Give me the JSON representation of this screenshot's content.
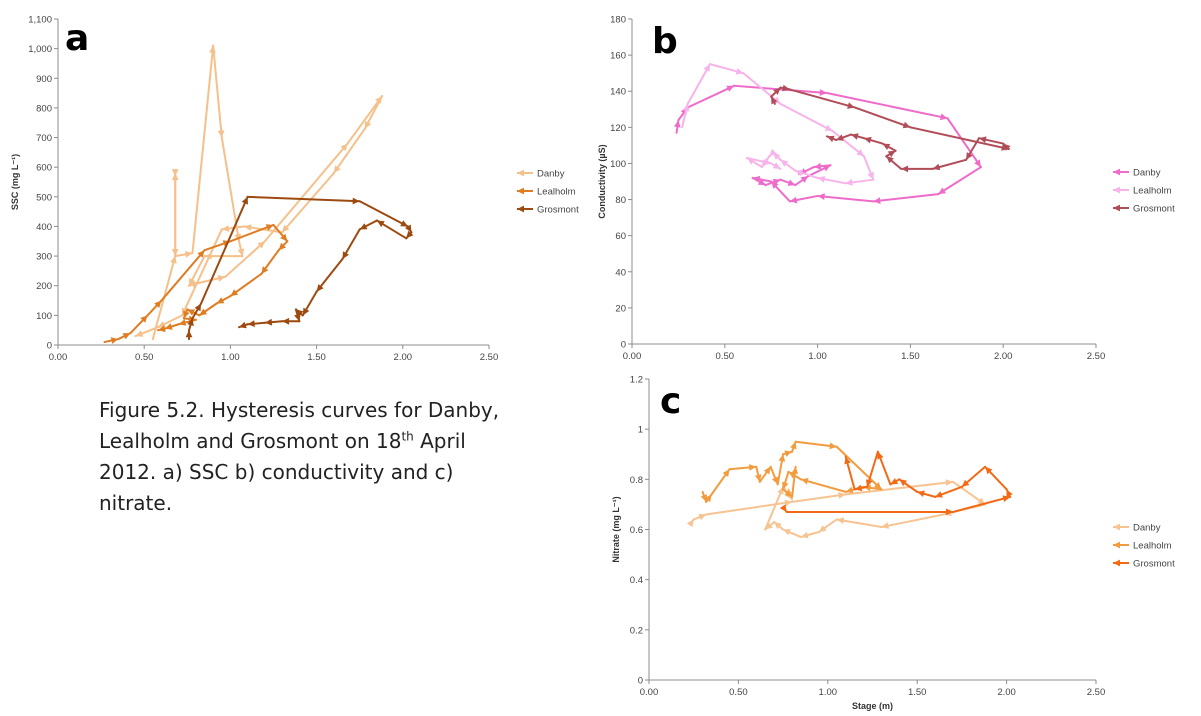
{
  "caption": {
    "pre": "Figure 5.2. Hysteresis curves for Danby, Lealholm and Grosmont on 18",
    "sup": "th",
    "post": " April 2012. a) SSC b) conductivity and c) nitrate."
  },
  "chart_data": [
    {
      "id": "a",
      "type": "line",
      "panel_letter": "a",
      "ylabel": "SSC (mg L⁻¹)",
      "xlabel": "",
      "xlim": [
        0,
        2.5
      ],
      "ylim": [
        0,
        1100
      ],
      "xticks": [
        "0.00",
        "0.50",
        "1.00",
        "1.50",
        "2.00",
        "2.50"
      ],
      "yticks": [
        "0",
        "100",
        "200",
        "300",
        "400",
        "500",
        "600",
        "700",
        "800",
        "900",
        "1,000",
        "1,100"
      ],
      "legend_position": "right",
      "series": [
        {
          "name": "Danby",
          "color": "#f5c08a",
          "points": [
            [
              0.55,
              20
            ],
            [
              0.68,
              300
            ],
            [
              0.68,
              580
            ],
            [
              0.68,
              570
            ],
            [
              0.68,
              300
            ],
            [
              0.78,
              310
            ],
            [
              0.9,
              1010
            ],
            [
              0.95,
              700
            ],
            [
              1.05,
              350
            ],
            [
              1.07,
              300
            ],
            [
              0.85,
              300
            ],
            [
              0.76,
              200
            ],
            [
              0.82,
              210
            ],
            [
              0.97,
              230
            ],
            [
              1.2,
              350
            ],
            [
              1.68,
              680
            ],
            [
              1.88,
              840
            ],
            [
              1.78,
              730
            ],
            [
              1.6,
              580
            ],
            [
              1.3,
              380
            ],
            [
              1.08,
              400
            ],
            [
              0.95,
              390
            ],
            [
              0.72,
              100
            ],
            [
              0.58,
              60
            ],
            [
              0.45,
              30
            ]
          ]
        },
        {
          "name": "Lealholm",
          "color": "#e07c22",
          "points": [
            [
              0.27,
              10
            ],
            [
              0.35,
              20
            ],
            [
              0.42,
              40
            ],
            [
              0.52,
              100
            ],
            [
              0.6,
              150
            ],
            [
              0.85,
              320
            ],
            [
              1.0,
              350
            ],
            [
              1.25,
              405
            ],
            [
              1.33,
              350
            ],
            [
              1.28,
              320
            ],
            [
              1.18,
              240
            ],
            [
              1.0,
              165
            ],
            [
              0.92,
              140
            ],
            [
              0.82,
              100
            ],
            [
              0.75,
              120
            ],
            [
              0.73,
              90
            ],
            [
              0.8,
              85
            ],
            [
              0.7,
              70
            ],
            [
              0.62,
              55
            ],
            [
              0.58,
              50
            ]
          ]
        },
        {
          "name": "Grosmont",
          "color": "#9c4a10",
          "points": [
            [
              0.76,
              20
            ],
            [
              0.76,
              50
            ],
            [
              0.78,
              90
            ],
            [
              0.83,
              140
            ],
            [
              1.1,
              500
            ],
            [
              1.75,
              485
            ],
            [
              2.03,
              400
            ],
            [
              2.05,
              380
            ],
            [
              2.02,
              360
            ],
            [
              1.85,
              420
            ],
            [
              1.75,
              390
            ],
            [
              1.65,
              290
            ],
            [
              1.5,
              180
            ],
            [
              1.42,
              100
            ],
            [
              1.38,
              120
            ],
            [
              1.4,
              80
            ],
            [
              1.3,
              80
            ],
            [
              1.2,
              75
            ],
            [
              1.1,
              70
            ],
            [
              1.05,
              60
            ]
          ]
        }
      ]
    },
    {
      "id": "b",
      "type": "line",
      "panel_letter": "b",
      "ylabel": "Conductivity (µS)",
      "xlabel": "",
      "xlim": [
        0,
        2.5
      ],
      "ylim": [
        0,
        180
      ],
      "xticks": [
        "0.00",
        "0.50",
        "1.00",
        "1.50",
        "2.00",
        "2.50"
      ],
      "yticks": [
        "0",
        "20",
        "40",
        "60",
        "80",
        "100",
        "120",
        "140",
        "160",
        "180"
      ],
      "legend_position": "right",
      "series": [
        {
          "name": "Danby",
          "color": "#ef6bc9",
          "points": [
            [
              0.24,
              117
            ],
            [
              0.25,
              124
            ],
            [
              0.3,
              131
            ],
            [
              0.55,
              143
            ],
            [
              1.05,
              139
            ],
            [
              1.7,
              125
            ],
            [
              1.88,
              98
            ],
            [
              1.65,
              83
            ],
            [
              1.3,
              79
            ],
            [
              1.0,
              82
            ],
            [
              0.85,
              79
            ],
            [
              0.75,
              90
            ],
            [
              0.65,
              92
            ],
            [
              0.72,
              88
            ],
            [
              0.8,
              91
            ],
            [
              0.88,
              88
            ],
            [
              0.95,
              93
            ],
            [
              1.07,
              99
            ],
            [
              0.98,
              98
            ],
            [
              0.9,
              94
            ]
          ]
        },
        {
          "name": "Lealholm",
          "color": "#f7b3ea",
          "points": [
            [
              0.27,
              120
            ],
            [
              0.3,
              133
            ],
            [
              0.42,
              155
            ],
            [
              0.6,
              150
            ],
            [
              0.8,
              133
            ],
            [
              1.08,
              118
            ],
            [
              1.25,
              104
            ],
            [
              1.3,
              91
            ],
            [
              1.15,
              89
            ],
            [
              1.0,
              92
            ],
            [
              0.88,
              96
            ],
            [
              0.8,
              102
            ],
            [
              0.76,
              106
            ],
            [
              0.74,
              104
            ],
            [
              0.7,
              98
            ],
            [
              0.62,
              103
            ],
            [
              0.75,
              100
            ],
            [
              0.8,
              97
            ]
          ]
        },
        {
          "name": "Grosmont",
          "color": "#b14d58",
          "points": [
            [
              0.77,
              133
            ],
            [
              0.75,
              137
            ],
            [
              0.8,
              142
            ],
            [
              0.85,
              141
            ],
            [
              1.2,
              131
            ],
            [
              1.5,
              120
            ],
            [
              2.03,
              108
            ],
            [
              2.0,
              111
            ],
            [
              1.87,
              114
            ],
            [
              1.8,
              102
            ],
            [
              1.62,
              97
            ],
            [
              1.45,
              97
            ],
            [
              1.37,
              104
            ],
            [
              1.42,
              107
            ],
            [
              1.35,
              111
            ],
            [
              1.25,
              114
            ],
            [
              1.18,
              116
            ],
            [
              1.1,
              113
            ],
            [
              1.05,
              115
            ]
          ]
        }
      ]
    },
    {
      "id": "c",
      "type": "line",
      "panel_letter": "c",
      "ylabel": "Nitrate (mg L⁻¹)",
      "xlabel": "Stage (m)",
      "xlim": [
        0,
        2.5
      ],
      "ylim": [
        0,
        1.2
      ],
      "xticks": [
        "0.00",
        "0.50",
        "1.00",
        "1.50",
        "2.00",
        "2.50"
      ],
      "yticks": [
        "0",
        "0.2",
        "0.4",
        "0.6",
        "0.8",
        "1",
        "1.2"
      ],
      "legend_position": "right",
      "series": [
        {
          "name": "Danby",
          "color": "#f7c391",
          "points": [
            [
              0.24,
              0.63
            ],
            [
              0.25,
              0.64
            ],
            [
              0.32,
              0.66
            ],
            [
              0.8,
              0.71
            ],
            [
              1.1,
              0.74
            ],
            [
              1.7,
              0.79
            ],
            [
              1.88,
              0.7
            ],
            [
              1.65,
              0.66
            ],
            [
              1.3,
              0.61
            ],
            [
              1.05,
              0.64
            ],
            [
              0.95,
              0.59
            ],
            [
              0.85,
              0.57
            ],
            [
              0.75,
              0.6
            ],
            [
              0.7,
              0.63
            ],
            [
              0.65,
              0.6
            ],
            [
              0.75,
              0.77
            ],
            [
              0.8,
              0.72
            ],
            [
              0.78,
              0.76
            ]
          ]
        },
        {
          "name": "Lealholm",
          "color": "#f39c3f",
          "points": [
            [
              0.3,
              0.75
            ],
            [
              0.32,
              0.71
            ],
            [
              0.35,
              0.74
            ],
            [
              0.45,
              0.84
            ],
            [
              0.6,
              0.85
            ],
            [
              0.62,
              0.79
            ],
            [
              0.68,
              0.85
            ],
            [
              0.72,
              0.78
            ],
            [
              0.75,
              0.9
            ],
            [
              0.8,
              0.91
            ],
            [
              0.82,
              0.95
            ],
            [
              1.05,
              0.93
            ],
            [
              1.3,
              0.76
            ],
            [
              1.2,
              0.77
            ],
            [
              1.1,
              0.75
            ],
            [
              0.85,
              0.8
            ],
            [
              0.78,
              0.83
            ],
            [
              0.75,
              0.76
            ],
            [
              0.8,
              0.73
            ],
            [
              0.82,
              0.85
            ]
          ]
        },
        {
          "name": "Grosmont",
          "color": "#f26a16",
          "points": [
            [
              0.75,
              0.69
            ],
            [
              0.77,
              0.67
            ],
            [
              1.7,
              0.67
            ],
            [
              2.02,
              0.73
            ],
            [
              2.0,
              0.76
            ],
            [
              1.88,
              0.85
            ],
            [
              1.75,
              0.77
            ],
            [
              1.6,
              0.73
            ],
            [
              1.5,
              0.75
            ],
            [
              1.4,
              0.8
            ],
            [
              1.35,
              0.78
            ],
            [
              1.28,
              0.91
            ],
            [
              1.22,
              0.77
            ],
            [
              1.15,
              0.76
            ],
            [
              1.1,
              0.89
            ]
          ]
        }
      ]
    }
  ]
}
